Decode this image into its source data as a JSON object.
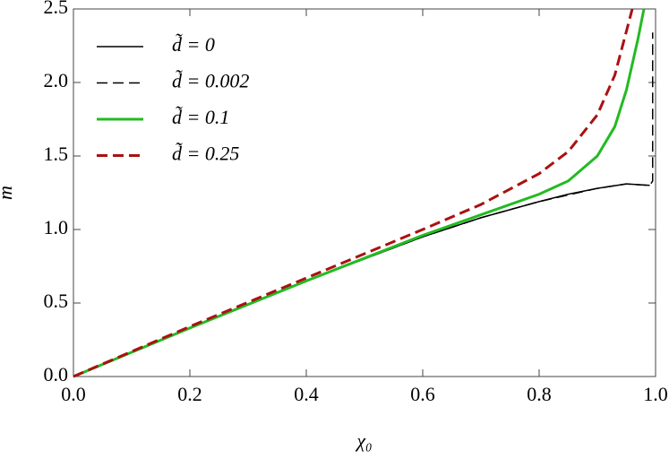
{
  "chart_data": {
    "type": "line",
    "xlabel": "χ₀",
    "ylabel": "m",
    "xlim": [
      0,
      1
    ],
    "ylim": [
      0,
      2.5
    ],
    "xticks": [
      {
        "value": 0,
        "label": "0.0"
      },
      0.2,
      0.4,
      0.6,
      0.8,
      {
        "value": 1,
        "label": "1.0"
      }
    ],
    "yticks": [
      {
        "value": 0,
        "label": "0.0"
      },
      0.5,
      {
        "value": 1,
        "label": "1.0"
      },
      1.5,
      {
        "value": 2,
        "label": "2.0"
      },
      2.5
    ],
    "legend": "upper left",
    "series": [
      {
        "name": "d̃ = 0",
        "color": "#000000",
        "dashed": false,
        "width": 1.5,
        "x": [
          0,
          0.1,
          0.2,
          0.3,
          0.4,
          0.5,
          0.6,
          0.7,
          0.8,
          0.85,
          0.9,
          0.95,
          0.99
        ],
        "values": [
          0,
          0.165,
          0.33,
          0.49,
          0.65,
          0.8,
          0.95,
          1.08,
          1.19,
          1.24,
          1.28,
          1.31,
          1.3
        ]
      },
      {
        "name": "d̃ = 0.002",
        "color": "#000000",
        "dashed": true,
        "width": 1.5,
        "x": [
          0,
          0.2,
          0.4,
          0.6,
          0.7,
          0.8,
          0.9,
          0.95,
          0.99,
          0.995,
          0.995
        ],
        "values": [
          0,
          0.33,
          0.65,
          0.95,
          1.08,
          1.19,
          1.28,
          1.31,
          1.3,
          1.33,
          2.34
        ]
      },
      {
        "name": "d̃ = 0.1",
        "color": "#22bb22",
        "dashed": false,
        "width": 3,
        "x": [
          0,
          0.2,
          0.4,
          0.6,
          0.7,
          0.8,
          0.85,
          0.9,
          0.93,
          0.95,
          0.97,
          0.98
        ],
        "values": [
          0,
          0.33,
          0.65,
          0.96,
          1.1,
          1.24,
          1.33,
          1.5,
          1.7,
          1.95,
          2.3,
          2.5
        ]
      },
      {
        "name": "d̃ = 0.25",
        "color": "#aa1111",
        "dashed": true,
        "width": 3,
        "x": [
          0,
          0.2,
          0.4,
          0.6,
          0.7,
          0.8,
          0.85,
          0.9,
          0.93,
          0.95,
          0.96
        ],
        "values": [
          0,
          0.34,
          0.67,
          1.0,
          1.17,
          1.38,
          1.53,
          1.78,
          2.05,
          2.35,
          2.5
        ]
      }
    ]
  }
}
